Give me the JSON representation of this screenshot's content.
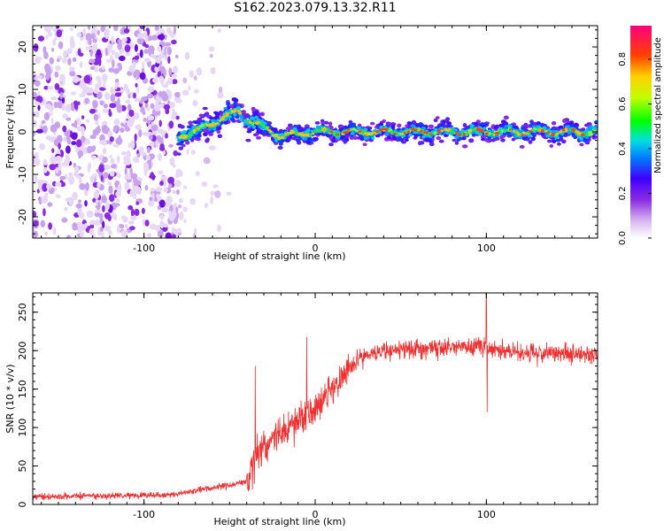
{
  "title": "S162.2023.079.13.32.R11",
  "chart_data": [
    {
      "type": "heatmap",
      "xlabel": "Height of straight line (km)",
      "ylabel": "Frequency (Hz)",
      "xlim": [
        -165,
        165
      ],
      "ylim": [
        -25,
        25
      ],
      "xticks": [
        -100,
        0,
        100
      ],
      "yticks": [
        -20,
        -10,
        0,
        10,
        20
      ],
      "colorbar": {
        "label": "Normalized spectral amplitude",
        "range": [
          0,
          0.95
        ],
        "ticks": [
          "0.0",
          "0.2",
          "0.4",
          "0.6",
          "0.8"
        ],
        "ticks_values": [
          0,
          0.2,
          0.4,
          0.6,
          0.8
        ],
        "colormap": [
          "#ffffff",
          "#d8b8f0",
          "#8a2be2",
          "#4000ff",
          "#0080ff",
          "#00e0e0",
          "#00ff00",
          "#c0ff00",
          "#ffd000",
          "#ff4000",
          "#ff0080"
        ]
      },
      "trace": {
        "x": [
          -80,
          -70,
          -60,
          -50,
          -45,
          -40,
          -35,
          -30,
          -25,
          -20,
          -10,
          0,
          10,
          20,
          40,
          60,
          80,
          100,
          120,
          140,
          165
        ],
        "y": [
          -1,
          0,
          2,
          4,
          5,
          3,
          2,
          1,
          0,
          -1,
          -0.5,
          0,
          0,
          0,
          0,
          0,
          0,
          0,
          0,
          0,
          0
        ]
      },
      "noise_region_x": [
        -165,
        -80
      ]
    },
    {
      "type": "line",
      "xlabel": "Height of straight line (km)",
      "ylabel": "SNR (10 * v/v)",
      "xlim": [
        -165,
        165
      ],
      "ylim": [
        0,
        275
      ],
      "xticks": [
        -100,
        0,
        100
      ],
      "yticks": [
        0,
        50,
        100,
        150,
        200,
        250
      ],
      "color": "#ef3030",
      "envelope": {
        "x": [
          -165,
          -120,
          -80,
          -70,
          -60,
          -50,
          -40,
          -35,
          -30,
          -20,
          -10,
          0,
          10,
          20,
          30,
          40,
          60,
          80,
          95,
          100,
          105,
          120,
          140,
          165
        ],
        "y": [
          10,
          11,
          13,
          18,
          22,
          25,
          30,
          60,
          75,
          95,
          110,
          125,
          150,
          180,
          195,
          200,
          203,
          205,
          206,
          205,
          200,
          198,
          196,
          195
        ]
      },
      "spikes": [
        {
          "x": -35,
          "y": 180
        },
        {
          "x": -5,
          "y": 218
        },
        {
          "x": 100,
          "y": 275
        },
        {
          "x": 100.5,
          "y": 120
        }
      ]
    }
  ]
}
